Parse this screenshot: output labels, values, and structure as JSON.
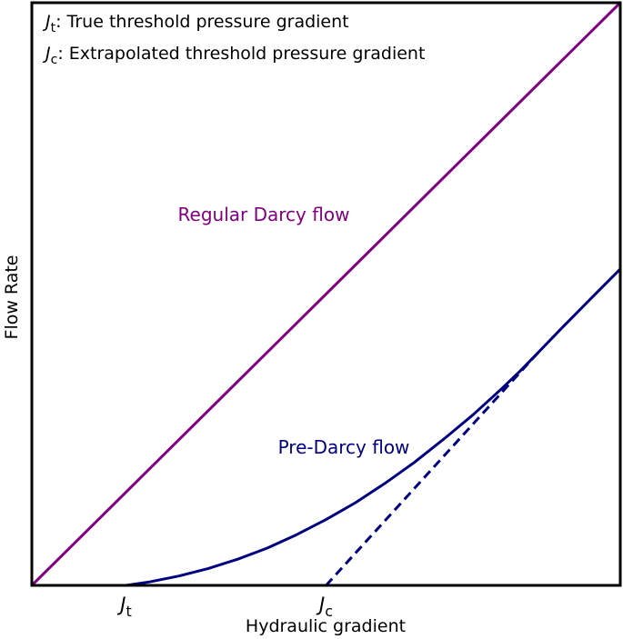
{
  "chart_data": {
    "type": "line",
    "title": "",
    "xlabel": "Hydraulic gradient",
    "ylabel": "Flow Rate",
    "xlim": [
      0,
      1
    ],
    "ylim": [
      0,
      1
    ],
    "grid": false,
    "ticks": {
      "show_values": false
    },
    "x_ticks": [
      {
        "x": 0.16,
        "symbol": "J",
        "sub": "t"
      },
      {
        "x": 0.5,
        "symbol": "J",
        "sub": "c"
      }
    ],
    "legend": {
      "placement": "top-left",
      "entries": [
        {
          "symbol": "J",
          "sub": "t",
          "text": ": True threshold pressure gradient"
        },
        {
          "symbol": "J",
          "sub": "c",
          "text": ": Extrapolated threshold pressure gradient"
        }
      ]
    },
    "series": [
      {
        "label": "Regular Darcy flow",
        "color": "#800080",
        "style": "solid",
        "x": [
          0,
          1
        ],
        "y": [
          0,
          1
        ]
      },
      {
        "label": "Pre-Darcy flow",
        "color": "#000080",
        "style": "solid",
        "x": [
          0.16,
          0.2,
          0.25,
          0.3,
          0.35,
          0.4,
          0.45,
          0.5,
          0.55,
          0.6,
          0.65,
          0.7,
          0.75,
          0.8,
          0.83,
          0.86,
          0.9,
          0.95,
          1.0
        ],
        "y": [
          0.0,
          0.006,
          0.016,
          0.029,
          0.045,
          0.064,
          0.087,
          0.113,
          0.142,
          0.175,
          0.211,
          0.251,
          0.293,
          0.339,
          0.368,
          0.399,
          0.441,
          0.492,
          0.543
        ]
      },
      {
        "label": "",
        "color": "#000080",
        "style": "dashed",
        "x": [
          0.5,
          0.86
        ],
        "y": [
          0.0,
          0.399
        ]
      }
    ]
  }
}
